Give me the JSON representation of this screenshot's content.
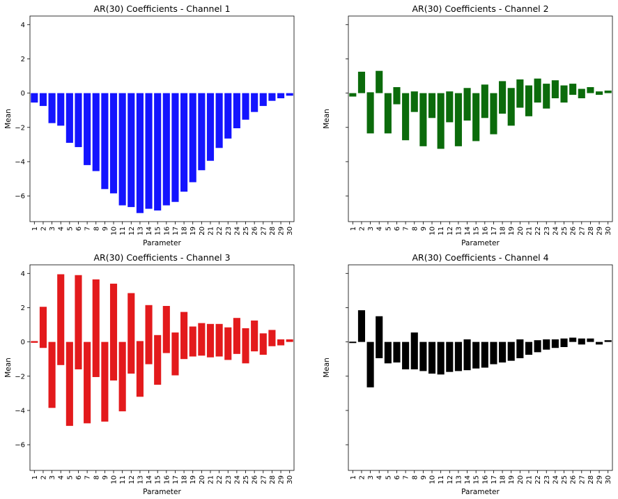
{
  "figure": {
    "ylabel": "Mean",
    "xlabel": "Parameter",
    "ylim": [
      -7.5,
      4.5
    ],
    "yticks": [
      -6,
      -4,
      -2,
      0,
      2,
      4
    ],
    "categories": [
      "1",
      "2",
      "3",
      "4",
      "5",
      "6",
      "7",
      "8",
      "9",
      "10",
      "11",
      "12",
      "13",
      "14",
      "15",
      "16",
      "17",
      "18",
      "19",
      "20",
      "21",
      "22",
      "23",
      "24",
      "25",
      "26",
      "27",
      "28",
      "29",
      "30"
    ]
  },
  "chart_data": [
    {
      "type": "bar",
      "title": "AR(30) Coefficients - Channel 1",
      "xlabel": "Parameter",
      "ylabel": "Mean",
      "ylim": [
        -7.5,
        4.5
      ],
      "color": "#1414ff",
      "categories": [
        "1",
        "2",
        "3",
        "4",
        "5",
        "6",
        "7",
        "8",
        "9",
        "10",
        "11",
        "12",
        "13",
        "14",
        "15",
        "16",
        "17",
        "18",
        "19",
        "20",
        "21",
        "22",
        "23",
        "24",
        "25",
        "26",
        "27",
        "28",
        "29",
        "30"
      ],
      "values": [
        -0.55,
        -0.75,
        -1.75,
        -1.9,
        -2.9,
        -3.15,
        -4.2,
        -4.55,
        -5.6,
        -5.85,
        -6.55,
        -6.65,
        -7.0,
        -6.75,
        -6.85,
        -6.55,
        -6.35,
        -5.75,
        -5.2,
        -4.5,
        -3.95,
        -3.2,
        -2.65,
        -2.05,
        -1.55,
        -1.1,
        -0.75,
        -0.45,
        -0.3,
        -0.15
      ]
    },
    {
      "type": "bar",
      "title": "AR(30) Coefficients - Channel 2",
      "xlabel": "Parameter",
      "ylabel": "Mean",
      "ylim": [
        -7.5,
        4.5
      ],
      "color": "#0b6b0b",
      "categories": [
        "1",
        "2",
        "3",
        "4",
        "5",
        "6",
        "7",
        "8",
        "9",
        "10",
        "11",
        "12",
        "13",
        "14",
        "15",
        "16",
        "17",
        "18",
        "19",
        "20",
        "21",
        "22",
        "23",
        "24",
        "25",
        "26",
        "27",
        "28",
        "29",
        "30"
      ],
      "ranges": [
        [
          -0.2,
          0.0
        ],
        [
          0.0,
          1.25
        ],
        [
          -2.35,
          0.05
        ],
        [
          0.0,
          1.3
        ],
        [
          -2.35,
          0.0
        ],
        [
          -0.65,
          0.35
        ],
        [
          -2.75,
          0.0
        ],
        [
          -1.1,
          0.1
        ],
        [
          -3.1,
          0.0
        ],
        [
          -1.45,
          0.0
        ],
        [
          -3.25,
          0.0
        ],
        [
          -1.7,
          0.1
        ],
        [
          -3.1,
          0.0
        ],
        [
          -1.6,
          0.3
        ],
        [
          -2.8,
          0.0
        ],
        [
          -1.45,
          0.5
        ],
        [
          -2.4,
          0.0
        ],
        [
          -1.2,
          0.7
        ],
        [
          -1.9,
          0.3
        ],
        [
          -0.85,
          0.8
        ],
        [
          -1.35,
          0.45
        ],
        [
          -0.55,
          0.85
        ],
        [
          -0.9,
          0.55
        ],
        [
          -0.3,
          0.75
        ],
        [
          -0.55,
          0.45
        ],
        [
          -0.1,
          0.55
        ],
        [
          -0.3,
          0.25
        ],
        [
          0.0,
          0.35
        ],
        [
          -0.1,
          0.1
        ],
        [
          0.0,
          0.15
        ]
      ]
    },
    {
      "type": "bar",
      "title": "AR(30) Coefficients - Channel 3",
      "xlabel": "Parameter",
      "ylabel": "Mean",
      "ylim": [
        -7.5,
        4.5
      ],
      "color": "#e31a1c",
      "categories": [
        "1",
        "2",
        "3",
        "4",
        "5",
        "6",
        "7",
        "8",
        "9",
        "10",
        "11",
        "12",
        "13",
        "14",
        "15",
        "16",
        "17",
        "18",
        "19",
        "20",
        "21",
        "22",
        "23",
        "24",
        "25",
        "26",
        "27",
        "28",
        "29",
        "30"
      ],
      "ranges": [
        [
          -0.05,
          0.05
        ],
        [
          -0.35,
          2.05
        ],
        [
          -3.85,
          0.0
        ],
        [
          -1.35,
          3.95
        ],
        [
          -4.9,
          0.0
        ],
        [
          -1.6,
          3.9
        ],
        [
          -4.75,
          0.0
        ],
        [
          -2.05,
          3.65
        ],
        [
          -4.65,
          0.0
        ],
        [
          -2.25,
          3.4
        ],
        [
          -4.05,
          0.0
        ],
        [
          -1.85,
          2.85
        ],
        [
          -3.2,
          0.05
        ],
        [
          -1.3,
          2.15
        ],
        [
          -2.5,
          0.4
        ],
        [
          -0.65,
          2.1
        ],
        [
          -1.95,
          0.55
        ],
        [
          -1.0,
          1.75
        ],
        [
          -0.85,
          0.9
        ],
        [
          -0.8,
          1.1
        ],
        [
          -0.9,
          1.05
        ],
        [
          -0.85,
          1.05
        ],
        [
          -1.05,
          0.85
        ],
        [
          -0.7,
          1.4
        ],
        [
          -1.25,
          0.8
        ],
        [
          -0.55,
          1.25
        ],
        [
          -0.75,
          0.5
        ],
        [
          -0.25,
          0.7
        ],
        [
          -0.2,
          0.15
        ],
        [
          0.0,
          0.15
        ]
      ]
    },
    {
      "type": "bar",
      "title": "AR(30) Coefficients - Channel 4",
      "xlabel": "Parameter",
      "ylabel": "Mean",
      "ylim": [
        -7.5,
        4.5
      ],
      "color": "#000000",
      "categories": [
        "1",
        "2",
        "3",
        "4",
        "5",
        "6",
        "7",
        "8",
        "9",
        "10",
        "11",
        "12",
        "13",
        "14",
        "15",
        "16",
        "17",
        "18",
        "19",
        "20",
        "21",
        "22",
        "23",
        "24",
        "25",
        "26",
        "27",
        "28",
        "29",
        "30"
      ],
      "ranges": [
        [
          -0.05,
          0.0
        ],
        [
          0.0,
          1.85
        ],
        [
          -2.65,
          0.0
        ],
        [
          -0.95,
          1.5
        ],
        [
          -1.25,
          0.0
        ],
        [
          -1.2,
          0.0
        ],
        [
          -1.6,
          0.0
        ],
        [
          -1.6,
          0.55
        ],
        [
          -1.7,
          0.0
        ],
        [
          -1.85,
          0.0
        ],
        [
          -1.9,
          0.0
        ],
        [
          -1.75,
          0.0
        ],
        [
          -1.7,
          0.0
        ],
        [
          -1.65,
          0.15
        ],
        [
          -1.55,
          0.0
        ],
        [
          -1.5,
          0.0
        ],
        [
          -1.3,
          0.0
        ],
        [
          -1.2,
          0.0
        ],
        [
          -1.1,
          0.0
        ],
        [
          -0.95,
          0.15
        ],
        [
          -0.75,
          0.0
        ],
        [
          -0.6,
          0.1
        ],
        [
          -0.45,
          0.15
        ],
        [
          -0.35,
          0.15
        ],
        [
          -0.3,
          0.2
        ],
        [
          0.0,
          0.25
        ],
        [
          -0.15,
          0.2
        ],
        [
          0.0,
          0.2
        ],
        [
          -0.15,
          0.0
        ],
        [
          0.0,
          0.1
        ]
      ]
    }
  ]
}
